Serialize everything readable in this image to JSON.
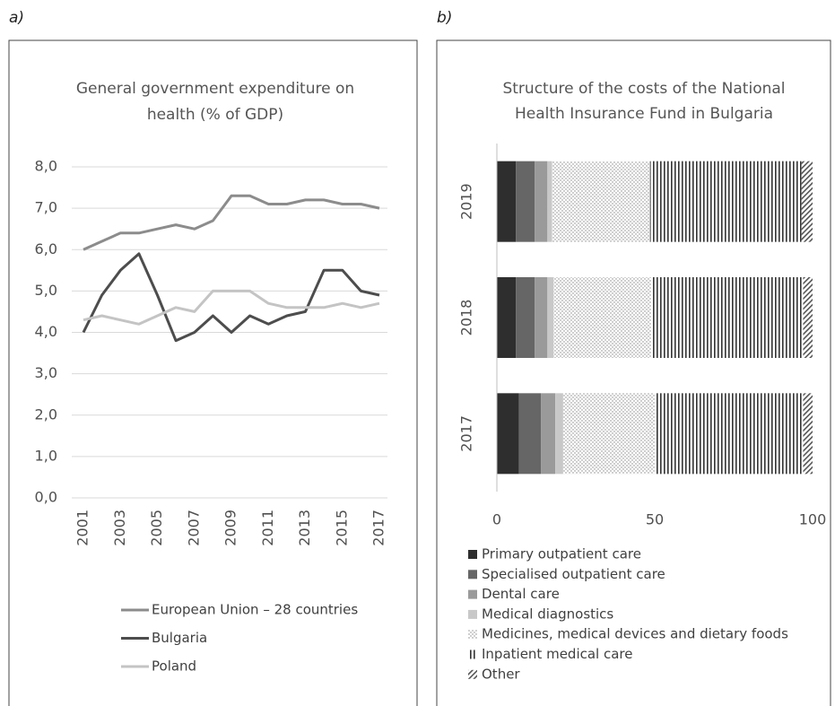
{
  "chart_data": [
    {
      "type": "line",
      "panel_label": "a)",
      "title": "General government expenditure on health (% of GDP)",
      "title_lines": [
        "General government expenditure on",
        "health (% of GDP)"
      ],
      "categories": [
        "2001",
        null,
        "2003",
        null,
        "2005",
        null,
        "2007",
        null,
        "2009",
        null,
        "2011",
        null,
        "2013",
        null,
        "2015",
        null,
        "2017"
      ],
      "series": [
        {
          "name": "European Union – 28 countries",
          "color": "#8c8c8c",
          "values": [
            6.0,
            6.2,
            6.4,
            6.4,
            6.5,
            6.6,
            6.5,
            6.7,
            7.3,
            7.3,
            7.1,
            7.1,
            7.2,
            7.2,
            7.1,
            7.1,
            7.0
          ]
        },
        {
          "name": "Bulgaria",
          "color": "#4d4d4d",
          "values": [
            4.0,
            4.9,
            5.5,
            5.9,
            4.9,
            3.8,
            4.0,
            4.4,
            4.0,
            4.4,
            4.2,
            4.4,
            4.5,
            5.5,
            5.5,
            5.0,
            4.9
          ]
        },
        {
          "name": "Poland",
          "color": "#c4c4c4",
          "values": [
            4.3,
            4.4,
            4.3,
            4.2,
            4.4,
            4.6,
            4.5,
            5.0,
            5.0,
            5.0,
            4.7,
            4.6,
            4.6,
            4.6,
            4.7,
            4.6,
            4.7
          ]
        }
      ],
      "ylim": [
        0,
        8
      ],
      "yticks": [
        {
          "value": 0,
          "label": "0,0"
        },
        {
          "value": 1,
          "label": "1,0"
        },
        {
          "value": 2,
          "label": "2,0"
        },
        {
          "value": 3,
          "label": "3,0"
        },
        {
          "value": 4,
          "label": "4,0"
        },
        {
          "value": 5,
          "label": "5,0"
        },
        {
          "value": 6,
          "label": "6,0"
        },
        {
          "value": 7,
          "label": "7,0"
        },
        {
          "value": 8,
          "label": "8,0"
        }
      ],
      "grid": true,
      "legend": "bottom"
    },
    {
      "type": "stacked-barh",
      "panel_label": "b)",
      "title": "Structure of the costs of the National Health Insurance Fund in Bulgaria",
      "title_lines": [
        "Structure of the costs of the National",
        "Health Insurance Fund in Bulgaria"
      ],
      "categories": [
        "2019",
        "2018",
        "2017"
      ],
      "series": [
        {
          "name": "Primary outpatient care",
          "color": "#2e2e2e",
          "values": [
            6,
            6,
            7
          ]
        },
        {
          "name": "Specialised outpatient care",
          "color": "#666666",
          "values": [
            6,
            6,
            7
          ]
        },
        {
          "name": "Dental care",
          "color": "#9a9a9a",
          "values": [
            4,
            4,
            4.5
          ]
        },
        {
          "name": "Medical diagnostics",
          "color": "#c8c8c8",
          "values": [
            1.5,
            2,
            2.5
          ]
        },
        {
          "name": "Medicines, medical devices and dietary foods",
          "color": "#aaaaaa",
          "pattern": "dots",
          "values": [
            31,
            31,
            29
          ]
        },
        {
          "name": "Inpatient medical care",
          "color": "#444444",
          "pattern": "vertical",
          "values": [
            48,
            48,
            47
          ]
        },
        {
          "name": "Other",
          "color": "#555555",
          "pattern": "diagonal",
          "values": [
            3.5,
            3,
            3
          ]
        }
      ],
      "xlim": [
        0,
        100
      ],
      "xticks": [
        0,
        50,
        100
      ],
      "legend": "bottom"
    }
  ]
}
